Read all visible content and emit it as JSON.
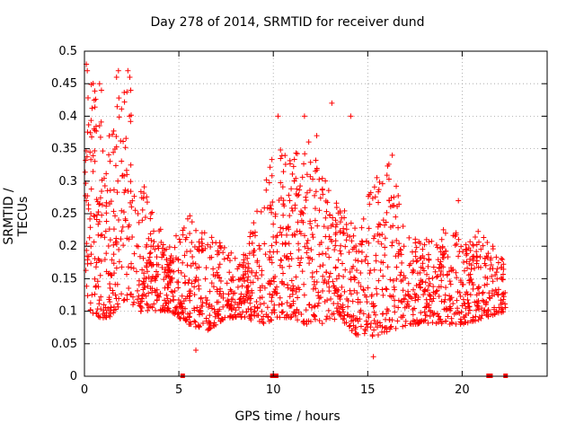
{
  "chart_data": {
    "type": "scatter",
    "title": "Day 278 of 2014, SRMTID for receiver dund",
    "xlabel": "GPS time / hours",
    "ylabel": "SRMTID / TECUs",
    "xlim": [
      0,
      24.5
    ],
    "ylim": [
      0,
      0.5
    ],
    "xticks": [
      0,
      5,
      10,
      15,
      20
    ],
    "yticks": [
      0,
      0.05,
      0.1,
      0.15,
      0.2,
      0.25,
      0.3,
      0.35,
      0.4,
      0.45,
      0.5
    ],
    "grid": true,
    "marker": "+",
    "colors": {
      "points": "#ff0000",
      "grid": "#a0a0a0",
      "axis": "#000000"
    },
    "envelope": [
      [
        0.0,
        0.15,
        0.4
      ],
      [
        0.3,
        0.1,
        0.48
      ],
      [
        0.8,
        0.09,
        0.4
      ],
      [
        1.3,
        0.09,
        0.38
      ],
      [
        2.2,
        0.12,
        0.47
      ],
      [
        2.8,
        0.1,
        0.33
      ],
      [
        3.5,
        0.1,
        0.26
      ],
      [
        4.5,
        0.1,
        0.2
      ],
      [
        5.5,
        0.08,
        0.25
      ],
      [
        6.5,
        0.07,
        0.22
      ],
      [
        7.5,
        0.09,
        0.2
      ],
      [
        8.5,
        0.09,
        0.19
      ],
      [
        9.5,
        0.08,
        0.3
      ],
      [
        10.2,
        0.09,
        0.36
      ],
      [
        11.0,
        0.09,
        0.33
      ],
      [
        11.7,
        0.08,
        0.39
      ],
      [
        12.5,
        0.08,
        0.32
      ],
      [
        13.5,
        0.09,
        0.27
      ],
      [
        14.5,
        0.06,
        0.22
      ],
      [
        15.2,
        0.06,
        0.3
      ],
      [
        16.2,
        0.07,
        0.33
      ],
      [
        17.2,
        0.08,
        0.22
      ],
      [
        18.2,
        0.08,
        0.21
      ],
      [
        19.2,
        0.08,
        0.23
      ],
      [
        20.2,
        0.08,
        0.21
      ],
      [
        21.2,
        0.09,
        0.23
      ],
      [
        22.3,
        0.1,
        0.18
      ]
    ],
    "outliers": [
      [
        0.1,
        0.48
      ],
      [
        0.15,
        0.47
      ],
      [
        0.8,
        0.45
      ],
      [
        0.9,
        0.44
      ],
      [
        1.7,
        0.46
      ],
      [
        1.8,
        0.47
      ],
      [
        2.3,
        0.47
      ],
      [
        2.4,
        0.46
      ],
      [
        2.45,
        0.44
      ],
      [
        10.25,
        0.4
      ],
      [
        11.65,
        0.4
      ],
      [
        13.1,
        0.42
      ],
      [
        14.1,
        0.4
      ],
      [
        12.3,
        0.37
      ],
      [
        16.3,
        0.34
      ],
      [
        15.3,
        0.03
      ],
      [
        5.9,
        0.04
      ],
      [
        19.8,
        0.27
      ]
    ],
    "zero_markers": [
      5.2,
      9.95,
      10.05,
      10.15,
      21.4,
      21.5,
      22.3
    ]
  }
}
